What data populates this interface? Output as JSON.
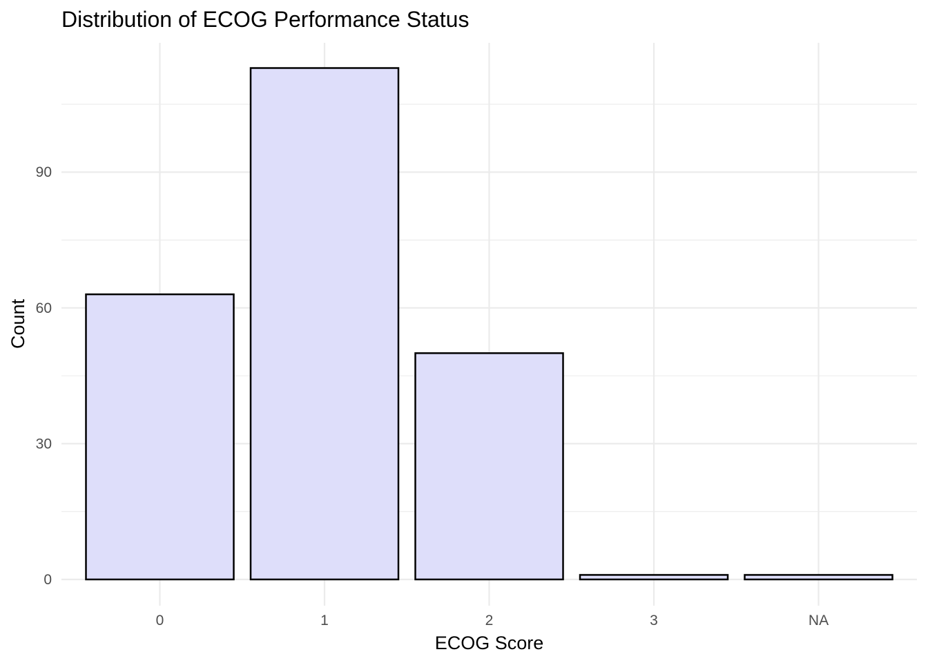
{
  "chart_data": {
    "type": "bar",
    "title": "Distribution of ECOG Performance Status",
    "xlabel": "ECOG Score",
    "ylabel": "Count",
    "categories": [
      "0",
      "1",
      "2",
      "3",
      "NA"
    ],
    "values": [
      63,
      113,
      50,
      1,
      1
    ],
    "ylim": [
      0,
      119
    ],
    "yticks": [
      0,
      30,
      60,
      90
    ],
    "grid": true,
    "legend": "none",
    "bar_fill": "#dedefa",
    "bar_stroke": "#000000"
  }
}
